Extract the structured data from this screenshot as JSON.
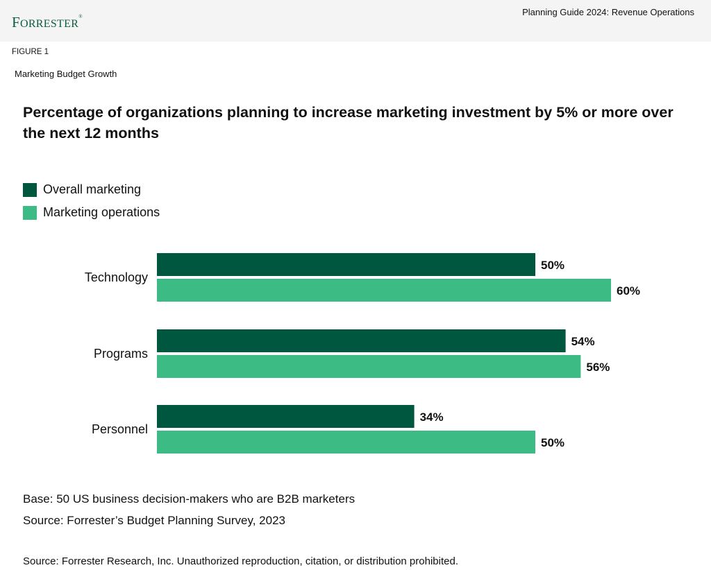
{
  "header": {
    "logo": "Forrester",
    "guide_title": "Planning Guide 2024: Revenue Operations"
  },
  "figure_label": "FIGURE 1",
  "figure_subtitle": "Marketing Budget Growth",
  "colors": {
    "overall": "#00573f",
    "operations": "#3dbb84"
  },
  "chart_data": {
    "type": "bar",
    "orientation": "horizontal",
    "title": "Percentage of organizations planning to increase marketing investment by 5% or more over the next 12 months",
    "categories": [
      "Technology",
      "Programs",
      "Personnel"
    ],
    "series": [
      {
        "name": "Overall marketing",
        "values": [
          50,
          54,
          34
        ],
        "labels": [
          "50%",
          "54%",
          "34%"
        ]
      },
      {
        "name": "Marketing operations",
        "values": [
          60,
          56,
          50
        ],
        "labels": [
          "60%",
          "56%",
          "50%"
        ]
      }
    ],
    "xlim": [
      0,
      100
    ],
    "grid": false,
    "legend": "top-left"
  },
  "footer": {
    "base": "Base: 50 US business decision-makers who are B2B marketers",
    "source": "Source: Forrester’s Budget Planning Survey, 2023",
    "copyright": "Source: Forrester Research, Inc. Unauthorized reproduction, citation, or distribution prohibited."
  }
}
